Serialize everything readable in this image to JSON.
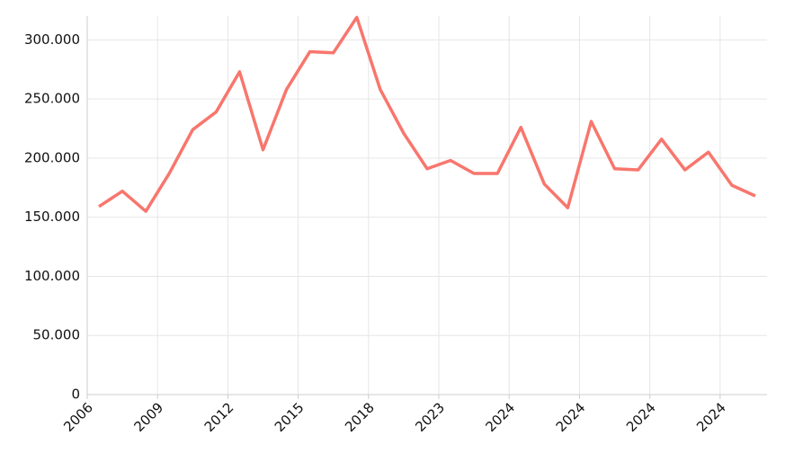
{
  "chart_data": {
    "type": "line",
    "categories": [
      "2006",
      null,
      null,
      "2009",
      null,
      null,
      "2012",
      null,
      null,
      "2015",
      null,
      null,
      "2018",
      null,
      null,
      "2023",
      null,
      null,
      "2024",
      null,
      null,
      "2024",
      null,
      null,
      "2024",
      null,
      null,
      "2024",
      null
    ],
    "values": [
      159000,
      172000,
      155000,
      187000,
      224000,
      239000,
      273000,
      207000,
      258000,
      290000,
      289000,
      319000,
      258000,
      221000,
      191000,
      198000,
      187000,
      187000,
      226000,
      178000,
      158000,
      231000,
      191000,
      190000,
      216000,
      190000,
      205000,
      177000,
      168000
    ],
    "color": "#f8766d",
    "ylim": [
      0,
      320000
    ],
    "yticks": [
      {
        "value": 0,
        "label": "0"
      },
      {
        "value": 50000,
        "label": "50.000"
      },
      {
        "value": 100000,
        "label": "100.000"
      },
      {
        "value": 150000,
        "label": "150.000"
      },
      {
        "value": 200000,
        "label": "200.000"
      },
      {
        "value": 250000,
        "label": "250.000"
      },
      {
        "value": 300000,
        "label": "300.000"
      }
    ],
    "grid": true
  }
}
